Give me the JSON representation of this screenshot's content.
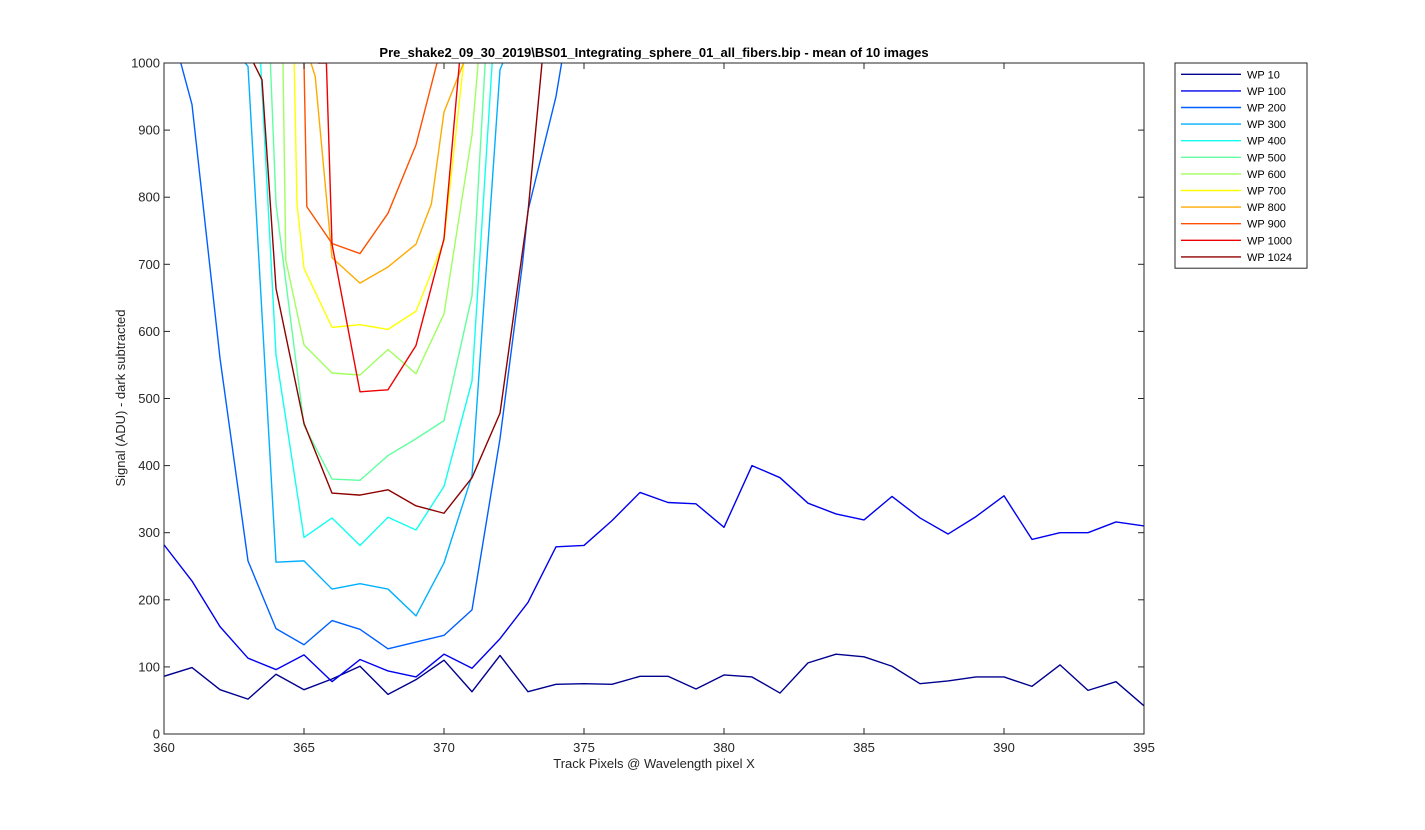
{
  "chart_data": {
    "type": "line",
    "title": "Pre_shake2_09_30_2019\\BS01_Integrating_sphere_01_all_fibers.bip - mean of 10 images",
    "xlabel": "Track Pixels @ Wavelength pixel X",
    "ylabel": "Signal (ADU) - dark subtracted",
    "xlim": [
      360,
      395
    ],
    "ylim": [
      0,
      1000
    ],
    "xticks": [
      360,
      365,
      370,
      375,
      380,
      385,
      390,
      395
    ],
    "yticks": [
      0,
      100,
      200,
      300,
      400,
      500,
      600,
      700,
      800,
      900,
      1000
    ],
    "grid": false,
    "legend_position": "outside-top-right",
    "series": [
      {
        "name": "WP 10",
        "color": "#00008f",
        "x": [
          360,
          361,
          362,
          363,
          364,
          365,
          366,
          367,
          368,
          369,
          370,
          371,
          372,
          373,
          374,
          375,
          376,
          377,
          378,
          379,
          380,
          381,
          382,
          383,
          384,
          385,
          386,
          387,
          388,
          389,
          390,
          391,
          392,
          393,
          394,
          395
        ],
        "y": [
          86,
          99,
          66,
          52,
          89,
          66,
          82,
          101,
          59,
          81,
          110,
          63,
          117,
          63,
          74,
          75,
          74,
          86,
          86,
          67,
          88,
          85,
          61,
          106,
          119,
          115,
          101,
          75,
          79,
          85,
          85,
          71,
          103,
          65,
          78,
          42
        ]
      },
      {
        "name": "WP 100",
        "color": "#0000ef",
        "x": [
          360,
          361,
          362,
          363,
          364,
          365,
          366,
          367,
          368,
          369,
          370,
          371,
          372,
          373,
          374,
          375,
          376,
          377,
          378,
          379,
          380,
          381,
          382,
          383,
          384,
          385,
          386,
          387,
          388,
          389,
          390,
          391,
          392,
          393,
          394,
          395
        ],
        "y": [
          282,
          228,
          160,
          113,
          96,
          118,
          78,
          111,
          94,
          85,
          119,
          98,
          142,
          196,
          279,
          281,
          318,
          360,
          345,
          343,
          308,
          400,
          382,
          344,
          328,
          319,
          354,
          322,
          298,
          324,
          355,
          290,
          300,
          300,
          316,
          310
        ]
      },
      {
        "name": "WP 200",
        "color": "#0060ff",
        "x": [
          360,
          360.6,
          361,
          362,
          363,
          364,
          365,
          366,
          367,
          368,
          369,
          370,
          371,
          372,
          372.8,
          373,
          374,
          374.2
        ],
        "y": [
          1010,
          1000,
          938,
          560,
          258,
          157,
          133,
          169,
          156,
          127,
          137,
          147,
          185,
          440,
          700,
          780,
          950,
          1000
        ]
      },
      {
        "name": "WP 300",
        "color": "#00b0ff",
        "x": [
          362.9,
          363,
          364,
          365,
          366,
          367,
          368,
          369,
          370,
          371,
          372,
          372.1
        ],
        "y": [
          1000,
          995,
          256,
          258,
          216,
          224,
          216,
          176,
          255,
          385,
          990,
          1000
        ]
      },
      {
        "name": "WP 400",
        "color": "#10ffef",
        "x": [
          363.45,
          364,
          365,
          366,
          367,
          368,
          369,
          370,
          371,
          371.72
        ],
        "y": [
          1000,
          565,
          293,
          322,
          281,
          323,
          304,
          369,
          526,
          1000
        ]
      },
      {
        "name": "WP 500",
        "color": "#60ff9f",
        "x": [
          363.8,
          364,
          365,
          366,
          367,
          368,
          369,
          370,
          371,
          371.47
        ],
        "y": [
          1000,
          790,
          460,
          380,
          378,
          415,
          440,
          467,
          653,
          1000
        ]
      },
      {
        "name": "WP 600",
        "color": "#a0ff5f",
        "x": [
          364.25,
          364.35,
          365,
          366,
          367,
          368,
          369,
          370,
          371,
          371.22
        ],
        "y": [
          1000,
          706,
          580,
          538,
          535,
          573,
          537,
          626,
          893,
          1000
        ]
      },
      {
        "name": "WP 700",
        "color": "#ffff00",
        "x": [
          364.65,
          364.75,
          365,
          366,
          367,
          368,
          369,
          370,
          370.7
        ],
        "y": [
          1000,
          790,
          694,
          606,
          610,
          603,
          630,
          735,
          1000
        ]
      },
      {
        "name": "WP 800",
        "color": "#ffaa00",
        "x": [
          365.25,
          365.4,
          366,
          367,
          368,
          369,
          369.55,
          370,
          370.7
        ],
        "y": [
          1000,
          980,
          710,
          672,
          696,
          730,
          790,
          927,
          1000
        ]
      },
      {
        "name": "WP 900",
        "color": "#ff5000",
        "x": [
          365,
          365.1,
          366,
          367,
          368,
          369,
          369.75
        ],
        "y": [
          1000,
          786,
          731,
          716,
          776,
          878,
          1000
        ]
      },
      {
        "name": "WP 1000",
        "color": "#ef0000",
        "x": [
          365.5,
          365.8,
          366,
          367,
          368,
          369,
          370,
          370.55
        ],
        "y": [
          1000,
          1000,
          730,
          510,
          513,
          579,
          738,
          1000
        ]
      },
      {
        "name": "WP 1024",
        "color": "#8f0000",
        "x": [
          363.2,
          363.5,
          364,
          365,
          366,
          367,
          368,
          369,
          370,
          371,
          372,
          373,
          373.5
        ],
        "y": [
          1000,
          975,
          664,
          463,
          359,
          356,
          364,
          340,
          329,
          382,
          478,
          778,
          1000
        ]
      }
    ]
  }
}
